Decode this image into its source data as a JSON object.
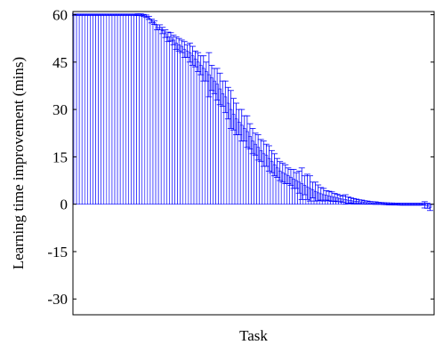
{
  "chart_data": {
    "type": "bar",
    "xlabel": "Task",
    "ylabel": "Learning time improvement (mins)",
    "ylim": [
      -35,
      61
    ],
    "yticks": [
      60,
      45,
      30,
      15,
      0,
      -15,
      -30
    ],
    "ytick_labels": [
      "60",
      "45",
      "30",
      "15",
      "0",
      "-15",
      "-30"
    ],
    "grid": false,
    "bar_color": "#0000ff",
    "errorbar_color": "#0000ff",
    "values": [
      60,
      60,
      60,
      60,
      60,
      60,
      60,
      60,
      60,
      60,
      60,
      60,
      60,
      60,
      60,
      60,
      60,
      60,
      60,
      60,
      60,
      60,
      60,
      60,
      60,
      59.8,
      59.5,
      59,
      58,
      57.5,
      56,
      56,
      55,
      54,
      53,
      53,
      52,
      51,
      50.5,
      50,
      49,
      48.5,
      48,
      47,
      46,
      45,
      44,
      43,
      42,
      41,
      40,
      39,
      38,
      36.5,
      35,
      34,
      32,
      30,
      28.5,
      27,
      26,
      25,
      24,
      23,
      21.5,
      20,
      19,
      18,
      17,
      16,
      15.5,
      14.5,
      13.5,
      12.5,
      11.5,
      10.5,
      10,
      9.5,
      9,
      8.5,
      8,
      7.5,
      7,
      6.5,
      6,
      5.5,
      5,
      4.5,
      4,
      3.6,
      3.3,
      3,
      2.8,
      2.6,
      2.4,
      2.2,
      2,
      1.8,
      1.6,
      1.5,
      1.3,
      1.2,
      1,
      0.9,
      0.8,
      0.7,
      0.6,
      0.5,
      0.45,
      0.4,
      0.35,
      0.3,
      0.25,
      0.2,
      0.15,
      0.1,
      0.1,
      0.05,
      0.05,
      0,
      0,
      0,
      0,
      0,
      0,
      0,
      0,
      0,
      -0.2,
      -0.5,
      -1
    ],
    "errors": [
      0.2,
      0.2,
      0.2,
      0.2,
      0.2,
      0.2,
      0.2,
      0.2,
      0.2,
      0.2,
      0.2,
      0.2,
      0.2,
      0.2,
      0.2,
      0.2,
      0.2,
      0.2,
      0.2,
      0.2,
      0.2,
      0.2,
      0.2,
      0.3,
      0.3,
      0.3,
      0.4,
      0.5,
      0.6,
      0.6,
      0.8,
      0.8,
      1,
      1.2,
      1.5,
      1.3,
      1.5,
      2,
      2,
      2,
      2.5,
      2,
      3,
      3,
      2.5,
      3,
      3,
      4,
      3,
      7,
      4,
      4,
      5,
      5,
      4,
      5,
      5,
      6,
      5,
      5,
      4,
      5,
      4,
      5,
      4,
      4,
      3.5,
      4,
      3.5,
      4,
      3.5,
      4,
      3.5,
      3.5,
      3,
      3,
      3,
      3,
      2.5,
      2.5,
      3,
      2.5,
      3.5,
      5,
      3,
      4,
      4,
      2.5,
      3,
      2.5,
      2,
      2,
      1.5,
      1.5,
      1.5,
      1.2,
      1.2,
      1,
      1,
      1.5,
      1,
      0.8,
      0.8,
      0.7,
      0.6,
      0.6,
      0.5,
      0.5,
      0.4,
      0.4,
      0.4,
      0.3,
      0.3,
      0.3,
      0.3,
      0.3,
      0.3,
      0.3,
      0.3,
      0.3,
      0.3,
      0.3,
      0.3,
      0.3,
      0.3,
      0.3,
      0.3,
      0.3,
      1,
      0.8,
      1
    ]
  }
}
